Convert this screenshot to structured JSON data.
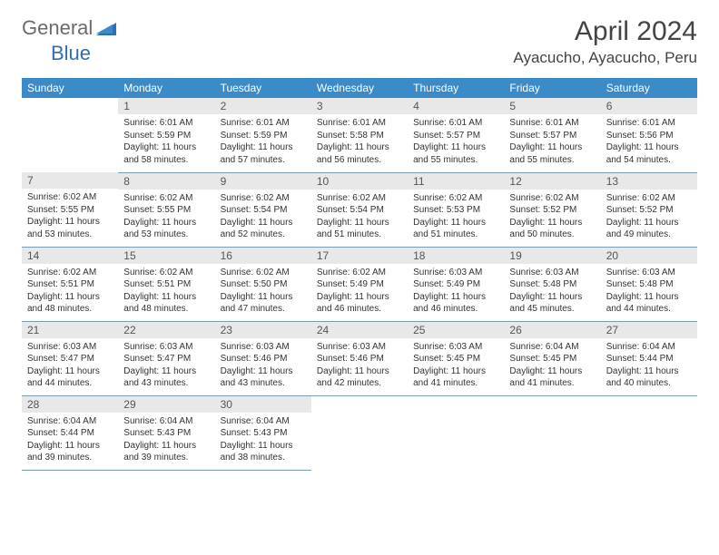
{
  "logo": {
    "text1": "General",
    "text2": "Blue"
  },
  "title": "April 2024",
  "location": "Ayacucho, Ayacucho, Peru",
  "colors": {
    "header_bg": "#3b8bc8",
    "header_fg": "#ffffff",
    "daynum_bg": "#e8e8e8",
    "row_border": "#7a9bb8",
    "logo_gray": "#6b6b6b",
    "logo_blue": "#2f6fb0"
  },
  "weekdays": [
    "Sunday",
    "Monday",
    "Tuesday",
    "Wednesday",
    "Thursday",
    "Friday",
    "Saturday"
  ],
  "weeks": [
    [
      null,
      {
        "n": "1",
        "sr": "6:01 AM",
        "ss": "5:59 PM",
        "dl": "11 hours and 58 minutes."
      },
      {
        "n": "2",
        "sr": "6:01 AM",
        "ss": "5:59 PM",
        "dl": "11 hours and 57 minutes."
      },
      {
        "n": "3",
        "sr": "6:01 AM",
        "ss": "5:58 PM",
        "dl": "11 hours and 56 minutes."
      },
      {
        "n": "4",
        "sr": "6:01 AM",
        "ss": "5:57 PM",
        "dl": "11 hours and 55 minutes."
      },
      {
        "n": "5",
        "sr": "6:01 AM",
        "ss": "5:57 PM",
        "dl": "11 hours and 55 minutes."
      },
      {
        "n": "6",
        "sr": "6:01 AM",
        "ss": "5:56 PM",
        "dl": "11 hours and 54 minutes."
      }
    ],
    [
      {
        "n": "7",
        "sr": "6:02 AM",
        "ss": "5:55 PM",
        "dl": "11 hours and 53 minutes."
      },
      {
        "n": "8",
        "sr": "6:02 AM",
        "ss": "5:55 PM",
        "dl": "11 hours and 53 minutes."
      },
      {
        "n": "9",
        "sr": "6:02 AM",
        "ss": "5:54 PM",
        "dl": "11 hours and 52 minutes."
      },
      {
        "n": "10",
        "sr": "6:02 AM",
        "ss": "5:54 PM",
        "dl": "11 hours and 51 minutes."
      },
      {
        "n": "11",
        "sr": "6:02 AM",
        "ss": "5:53 PM",
        "dl": "11 hours and 51 minutes."
      },
      {
        "n": "12",
        "sr": "6:02 AM",
        "ss": "5:52 PM",
        "dl": "11 hours and 50 minutes."
      },
      {
        "n": "13",
        "sr": "6:02 AM",
        "ss": "5:52 PM",
        "dl": "11 hours and 49 minutes."
      }
    ],
    [
      {
        "n": "14",
        "sr": "6:02 AM",
        "ss": "5:51 PM",
        "dl": "11 hours and 48 minutes."
      },
      {
        "n": "15",
        "sr": "6:02 AM",
        "ss": "5:51 PM",
        "dl": "11 hours and 48 minutes."
      },
      {
        "n": "16",
        "sr": "6:02 AM",
        "ss": "5:50 PM",
        "dl": "11 hours and 47 minutes."
      },
      {
        "n": "17",
        "sr": "6:02 AM",
        "ss": "5:49 PM",
        "dl": "11 hours and 46 minutes."
      },
      {
        "n": "18",
        "sr": "6:03 AM",
        "ss": "5:49 PM",
        "dl": "11 hours and 46 minutes."
      },
      {
        "n": "19",
        "sr": "6:03 AM",
        "ss": "5:48 PM",
        "dl": "11 hours and 45 minutes."
      },
      {
        "n": "20",
        "sr": "6:03 AM",
        "ss": "5:48 PM",
        "dl": "11 hours and 44 minutes."
      }
    ],
    [
      {
        "n": "21",
        "sr": "6:03 AM",
        "ss": "5:47 PM",
        "dl": "11 hours and 44 minutes."
      },
      {
        "n": "22",
        "sr": "6:03 AM",
        "ss": "5:47 PM",
        "dl": "11 hours and 43 minutes."
      },
      {
        "n": "23",
        "sr": "6:03 AM",
        "ss": "5:46 PM",
        "dl": "11 hours and 43 minutes."
      },
      {
        "n": "24",
        "sr": "6:03 AM",
        "ss": "5:46 PM",
        "dl": "11 hours and 42 minutes."
      },
      {
        "n": "25",
        "sr": "6:03 AM",
        "ss": "5:45 PM",
        "dl": "11 hours and 41 minutes."
      },
      {
        "n": "26",
        "sr": "6:04 AM",
        "ss": "5:45 PM",
        "dl": "11 hours and 41 minutes."
      },
      {
        "n": "27",
        "sr": "6:04 AM",
        "ss": "5:44 PM",
        "dl": "11 hours and 40 minutes."
      }
    ],
    [
      {
        "n": "28",
        "sr": "6:04 AM",
        "ss": "5:44 PM",
        "dl": "11 hours and 39 minutes."
      },
      {
        "n": "29",
        "sr": "6:04 AM",
        "ss": "5:43 PM",
        "dl": "11 hours and 39 minutes."
      },
      {
        "n": "30",
        "sr": "6:04 AM",
        "ss": "5:43 PM",
        "dl": "11 hours and 38 minutes."
      },
      null,
      null,
      null,
      null
    ]
  ],
  "labels": {
    "sunrise": "Sunrise: ",
    "sunset": "Sunset: ",
    "daylight": "Daylight: "
  }
}
